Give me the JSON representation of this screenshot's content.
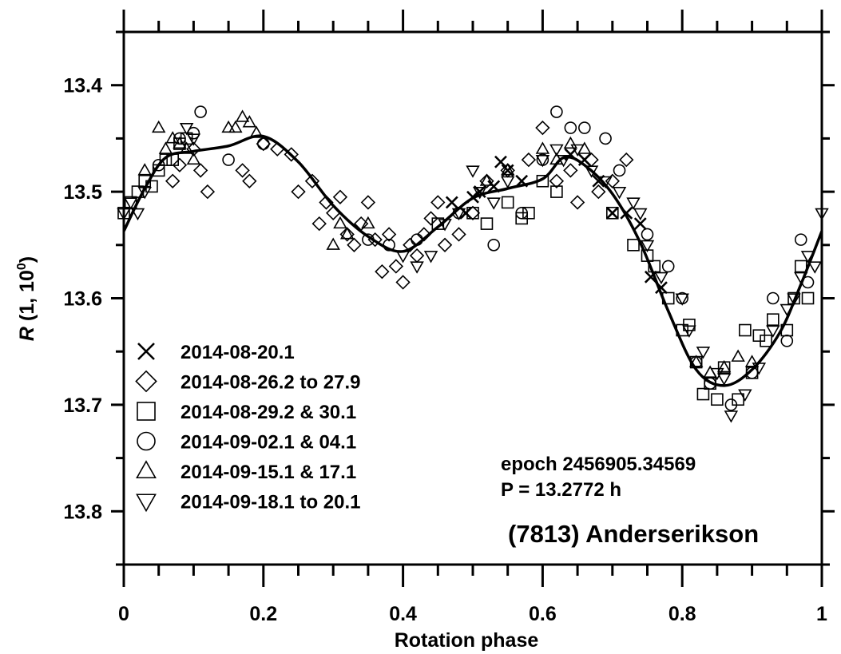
{
  "chart_data": {
    "type": "scatter",
    "xlabel": "Rotation phase",
    "ylabel": "R (1, 10°)",
    "ylabel_parts": [
      "R",
      " (1, 10",
      "0",
      ")"
    ],
    "xlim": [
      0,
      1
    ],
    "ylim": [
      13.85,
      13.35
    ],
    "y_inverted": true,
    "xticks": [
      0,
      0.2,
      0.4,
      0.6,
      0.8,
      1
    ],
    "xtick_labels": [
      "0",
      "0.2",
      "0.4",
      "0.6",
      "0.8",
      "1"
    ],
    "yticks": [
      13.4,
      13.5,
      13.6,
      13.7,
      13.8
    ],
    "ytick_labels": [
      "13.4",
      "13.5",
      "13.6",
      "13.7",
      "13.8"
    ],
    "grid": false,
    "legend_position": "lower-left",
    "annotations": {
      "epoch": "epoch 2456905.34569",
      "period": "P = 13.2772 h",
      "object": "(7813) Anderserikson"
    },
    "fit_curve": {
      "name": "",
      "x": [
        0,
        0.03,
        0.06,
        0.1,
        0.15,
        0.2,
        0.25,
        0.3,
        0.35,
        0.4,
        0.45,
        0.5,
        0.55,
        0.6,
        0.63,
        0.66,
        0.7,
        0.74,
        0.78,
        0.82,
        0.86,
        0.9,
        0.94,
        0.97,
        1.0
      ],
      "y": [
        13.537,
        13.497,
        13.468,
        13.462,
        13.457,
        13.448,
        13.472,
        13.513,
        13.542,
        13.556,
        13.533,
        13.506,
        13.497,
        13.488,
        13.468,
        13.475,
        13.502,
        13.548,
        13.612,
        13.667,
        13.682,
        13.667,
        13.632,
        13.587,
        13.537
      ]
    },
    "series": [
      {
        "name": "2014-08-20.1",
        "marker": "x",
        "x": [
          0.47,
          0.49,
          0.5,
          0.51,
          0.53,
          0.54,
          0.55,
          0.57,
          0.64,
          0.66,
          0.68,
          0.7,
          0.72,
          0.74,
          0.755,
          0.77
        ],
        "y": [
          13.51,
          13.52,
          13.505,
          13.5,
          13.495,
          13.472,
          13.48,
          13.49,
          13.465,
          13.47,
          13.49,
          13.52,
          13.52,
          13.53,
          13.58,
          13.59
        ]
      },
      {
        "name": "2014-08-26.2 to 27.9",
        "marker": "diamond",
        "x": [
          0.07,
          0.08,
          0.1,
          0.11,
          0.12,
          0.17,
          0.18,
          0.2,
          0.22,
          0.24,
          0.25,
          0.27,
          0.28,
          0.29,
          0.3,
          0.31,
          0.32,
          0.33,
          0.34,
          0.35,
          0.36,
          0.37,
          0.38,
          0.39,
          0.4,
          0.41,
          0.42,
          0.43,
          0.44,
          0.45,
          0.46,
          0.48,
          0.5,
          0.52,
          0.55,
          0.58,
          0.6,
          0.62,
          0.64,
          0.65,
          0.67,
          0.68,
          0.7,
          0.72
        ],
        "y": [
          13.49,
          13.475,
          13.46,
          13.48,
          13.5,
          13.48,
          13.49,
          13.455,
          13.46,
          13.465,
          13.5,
          13.49,
          13.53,
          13.51,
          13.52,
          13.505,
          13.54,
          13.55,
          13.53,
          13.51,
          13.545,
          13.575,
          13.54,
          13.57,
          13.585,
          13.55,
          13.56,
          13.54,
          13.525,
          13.51,
          13.55,
          13.54,
          13.52,
          13.49,
          13.48,
          13.47,
          13.44,
          13.49,
          13.48,
          13.51,
          13.47,
          13.5,
          13.49,
          13.47
        ]
      },
      {
        "name": "2014-08-29.2 & 30.1",
        "marker": "square",
        "x": [
          0.0,
          0.01,
          0.02,
          0.03,
          0.04,
          0.05,
          0.06,
          0.07,
          0.08,
          0.09,
          0.45,
          0.5,
          0.52,
          0.55,
          0.57,
          0.58,
          0.6,
          0.62,
          0.7,
          0.73,
          0.75,
          0.76,
          0.78,
          0.8,
          0.81,
          0.82,
          0.83,
          0.84,
          0.85,
          0.86,
          0.88,
          0.89,
          0.9,
          0.91,
          0.92,
          0.93,
          0.95,
          0.96,
          0.97,
          0.98
        ],
        "y": [
          13.52,
          13.51,
          13.5,
          13.49,
          13.495,
          13.48,
          13.47,
          13.47,
          13.455,
          13.45,
          13.53,
          13.52,
          13.53,
          13.51,
          13.525,
          13.52,
          13.49,
          13.5,
          13.52,
          13.55,
          13.56,
          13.57,
          13.6,
          13.63,
          13.625,
          13.66,
          13.69,
          13.68,
          13.695,
          13.665,
          13.695,
          13.63,
          13.67,
          13.635,
          13.64,
          13.62,
          13.63,
          13.6,
          13.57,
          13.6
        ]
      },
      {
        "name": "2014-09-02.1 & 04.1",
        "marker": "circle",
        "x": [
          0.05,
          0.08,
          0.1,
          0.11,
          0.15,
          0.2,
          0.35,
          0.38,
          0.42,
          0.48,
          0.53,
          0.57,
          0.6,
          0.62,
          0.64,
          0.66,
          0.69,
          0.71,
          0.75,
          0.78,
          0.8,
          0.82,
          0.84,
          0.87,
          0.9,
          0.93,
          0.95,
          0.97,
          0.98
        ],
        "y": [
          13.475,
          13.45,
          13.445,
          13.425,
          13.47,
          13.455,
          13.545,
          13.55,
          13.545,
          13.52,
          13.55,
          13.52,
          13.47,
          13.425,
          13.44,
          13.44,
          13.45,
          13.48,
          13.54,
          13.57,
          13.6,
          13.66,
          13.68,
          13.7,
          13.67,
          13.6,
          13.64,
          13.545,
          13.585
        ]
      },
      {
        "name": "2014-09-15.1 & 17.1",
        "marker": "triangle-up",
        "x": [
          0.03,
          0.05,
          0.06,
          0.07,
          0.08,
          0.09,
          0.1,
          0.15,
          0.16,
          0.17,
          0.18,
          0.19,
          0.3,
          0.31,
          0.32,
          0.35,
          0.52,
          0.55,
          0.6,
          0.62,
          0.64,
          0.66,
          0.82,
          0.84,
          0.86,
          0.88,
          0.9
        ],
        "y": [
          13.48,
          13.44,
          13.46,
          13.45,
          13.455,
          13.46,
          13.47,
          13.44,
          13.44,
          13.43,
          13.435,
          13.445,
          13.55,
          13.53,
          13.54,
          13.53,
          13.49,
          13.48,
          13.46,
          13.47,
          13.455,
          13.46,
          13.66,
          13.67,
          13.665,
          13.655,
          13.66
        ]
      },
      {
        "name": "2014-09-18.1 to 20.1",
        "marker": "triangle-down",
        "x": [
          0.0,
          0.01,
          0.02,
          0.03,
          0.09,
          0.1,
          0.4,
          0.42,
          0.44,
          0.46,
          0.48,
          0.5,
          0.51,
          0.53,
          0.55,
          0.6,
          0.62,
          0.63,
          0.65,
          0.67,
          0.69,
          0.71,
          0.73,
          0.74,
          0.75,
          0.77,
          0.8,
          0.81,
          0.83,
          0.85,
          0.86,
          0.87,
          0.89,
          0.91,
          0.93,
          0.95,
          0.96,
          0.97,
          0.98,
          0.99,
          1.0
        ],
        "y": [
          13.52,
          13.51,
          13.52,
          13.5,
          13.44,
          13.45,
          13.56,
          13.57,
          13.56,
          13.53,
          13.52,
          13.48,
          13.5,
          13.51,
          13.49,
          13.47,
          13.46,
          13.47,
          13.46,
          13.48,
          13.49,
          13.5,
          13.51,
          13.52,
          13.55,
          13.58,
          13.6,
          13.63,
          13.65,
          13.67,
          13.675,
          13.71,
          13.69,
          13.665,
          13.63,
          13.61,
          13.6,
          13.58,
          13.56,
          13.57,
          13.52
        ]
      }
    ]
  }
}
